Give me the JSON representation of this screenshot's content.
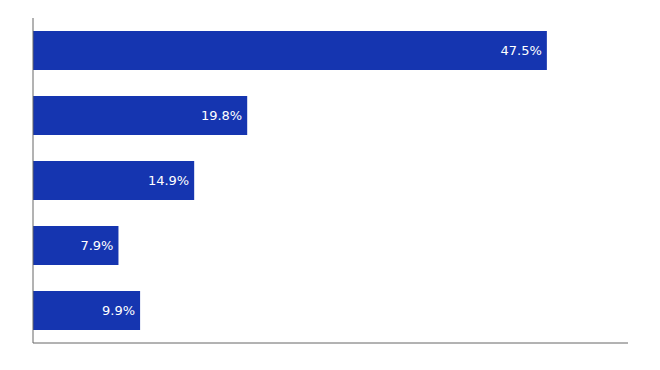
{
  "chart_data": {
    "type": "bar",
    "orientation": "horizontal",
    "categories": [
      null,
      null,
      null,
      null,
      null
    ],
    "values": [
      47.5,
      19.8,
      14.9,
      7.9,
      9.9
    ],
    "value_labels": [
      "47.5%",
      "19.8%",
      "14.9%",
      "7.9%",
      "9.9%"
    ],
    "color": "#1535b0",
    "xlim": [
      0,
      55
    ],
    "data_labels": true,
    "tick_labels": false
  }
}
